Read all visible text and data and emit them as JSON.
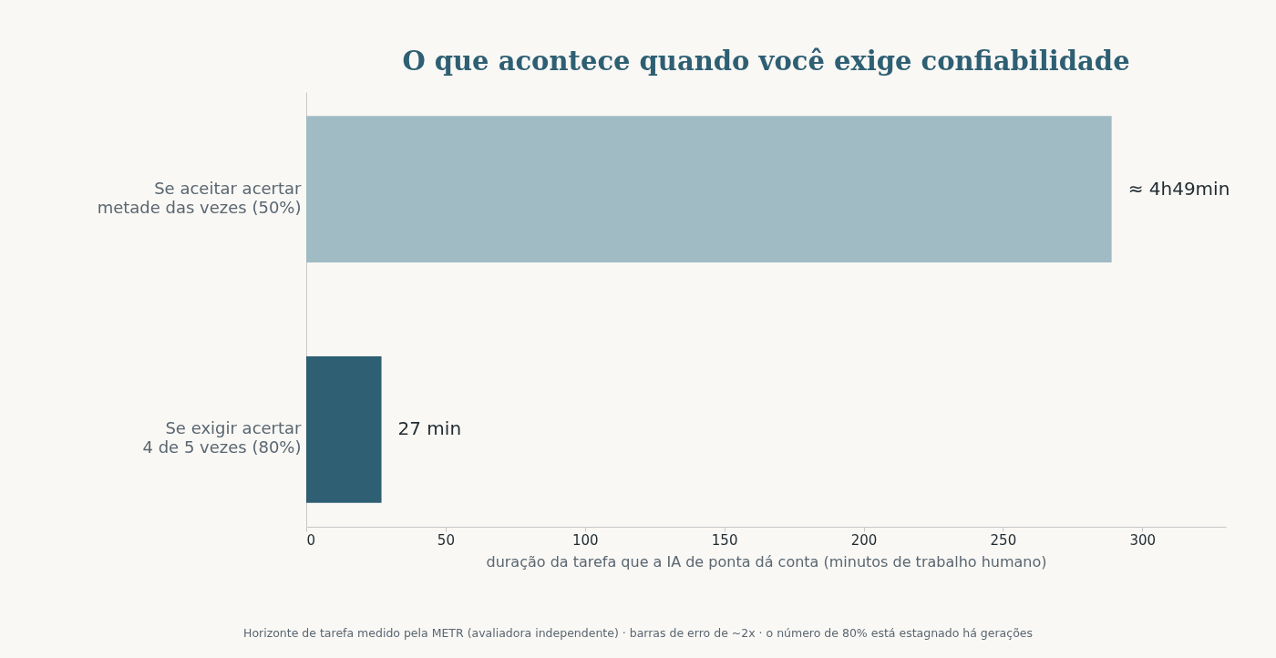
{
  "chart_data": {
    "type": "bar",
    "orientation": "horizontal",
    "title": "O que acontece quando você exige confiabilidade",
    "xlabel": "duração da tarefa que a IA de ponta dá conta (minutos de trabalho humano)",
    "categories": [
      "Se aceitar acertar\nmetade das vezes (50%)",
      "Se exigir acertar\n4 de 5 vezes (80%)"
    ],
    "values": [
      289,
      27
    ],
    "colors": [
      "#a0bbc4",
      "#2e5f73"
    ],
    "value_labels": [
      "≈ 4h49min",
      "27 min"
    ],
    "xlim": [
      0,
      330
    ],
    "xticks": [
      0,
      50,
      100,
      150,
      200,
      250,
      300
    ],
    "annotations": [
      "Horizonte de tarefa medido pela METR (avaliadora independente) · barras de erro de ~2x · o número de 80% está estagnado há gerações"
    ]
  }
}
